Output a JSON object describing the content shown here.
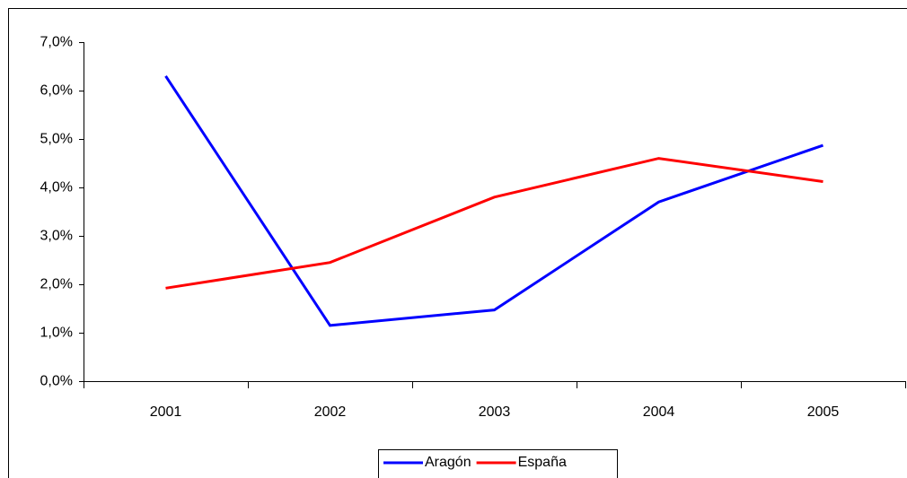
{
  "chart_data": {
    "type": "line",
    "categories": [
      "2001",
      "2002",
      "2003",
      "2004",
      "2005"
    ],
    "series": [
      {
        "name": "Aragón",
        "color": "#0000ff",
        "values": [
          6.3,
          1.15,
          1.47,
          3.7,
          4.87
        ]
      },
      {
        "name": "España",
        "color": "#ff0000",
        "values": [
          1.92,
          2.45,
          3.8,
          4.6,
          4.12
        ]
      }
    ],
    "ylim": [
      0,
      7
    ],
    "yticks": [
      {
        "value": 0,
        "label": "0,0%"
      },
      {
        "value": 1,
        "label": "1,0%"
      },
      {
        "value": 2,
        "label": "2,0%"
      },
      {
        "value": 3,
        "label": "3,0%"
      },
      {
        "value": 4,
        "label": "4,0%"
      },
      {
        "value": 5,
        "label": "5,0%"
      },
      {
        "value": 6,
        "label": "6,0%"
      },
      {
        "value": 7,
        "label": "7,0%"
      }
    ],
    "grid": false,
    "legend": "bottom"
  }
}
